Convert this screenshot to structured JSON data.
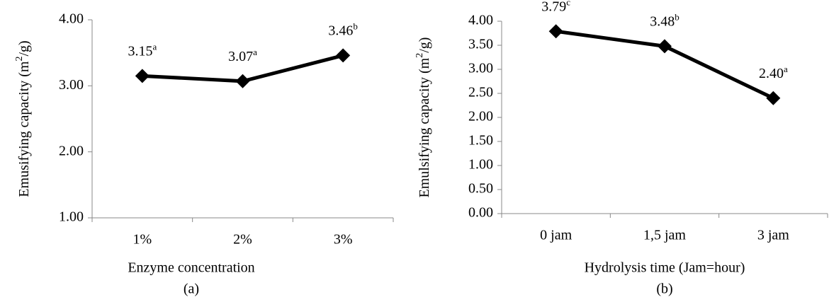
{
  "chart_data": [
    {
      "type": "line",
      "caption": "(a)",
      "xlabel": "Enzyme concentration",
      "ylabel": [
        "Emusifying capacity (m",
        "2",
        "/g)"
      ],
      "categories": [
        "1%",
        "2%",
        "3%"
      ],
      "values": [
        3.15,
        3.07,
        3.46
      ],
      "value_labels": [
        "3.15",
        "3.07",
        "3.46"
      ],
      "letters": [
        "a",
        "a",
        "b"
      ],
      "color": "#000000",
      "ylim": [
        1,
        4
      ],
      "yticks": [
        {
          "value": 1,
          "label": "1.00"
        },
        {
          "value": 2,
          "label": "2.00"
        },
        {
          "value": 3,
          "label": "3.00"
        },
        {
          "value": 4,
          "label": "4.00"
        }
      ]
    },
    {
      "type": "line",
      "caption": "(b)",
      "xlabel": "Hydrolysis time (Jam=hour)",
      "ylabel": [
        "Emulsifying capacity (m",
        "2",
        "/g)"
      ],
      "categories": [
        "0 jam",
        "1,5 jam",
        "3 jam"
      ],
      "values": [
        3.79,
        3.48,
        2.4
      ],
      "value_labels": [
        "3.79",
        "3.48",
        "2.40"
      ],
      "letters": [
        "c",
        "b",
        "a"
      ],
      "color": "#000000",
      "ylim": [
        0,
        4
      ],
      "yticks": [
        {
          "value": 0,
          "label": "0.00"
        },
        {
          "value": 0.5,
          "label": "0.50"
        },
        {
          "value": 1,
          "label": "1.00"
        },
        {
          "value": 1.5,
          "label": "1.50"
        },
        {
          "value": 2,
          "label": "2.00"
        },
        {
          "value": 2.5,
          "label": "2.50"
        },
        {
          "value": 3,
          "label": "3.00"
        },
        {
          "value": 3.5,
          "label": "3.50"
        },
        {
          "value": 4,
          "label": "4.00"
        }
      ]
    }
  ]
}
